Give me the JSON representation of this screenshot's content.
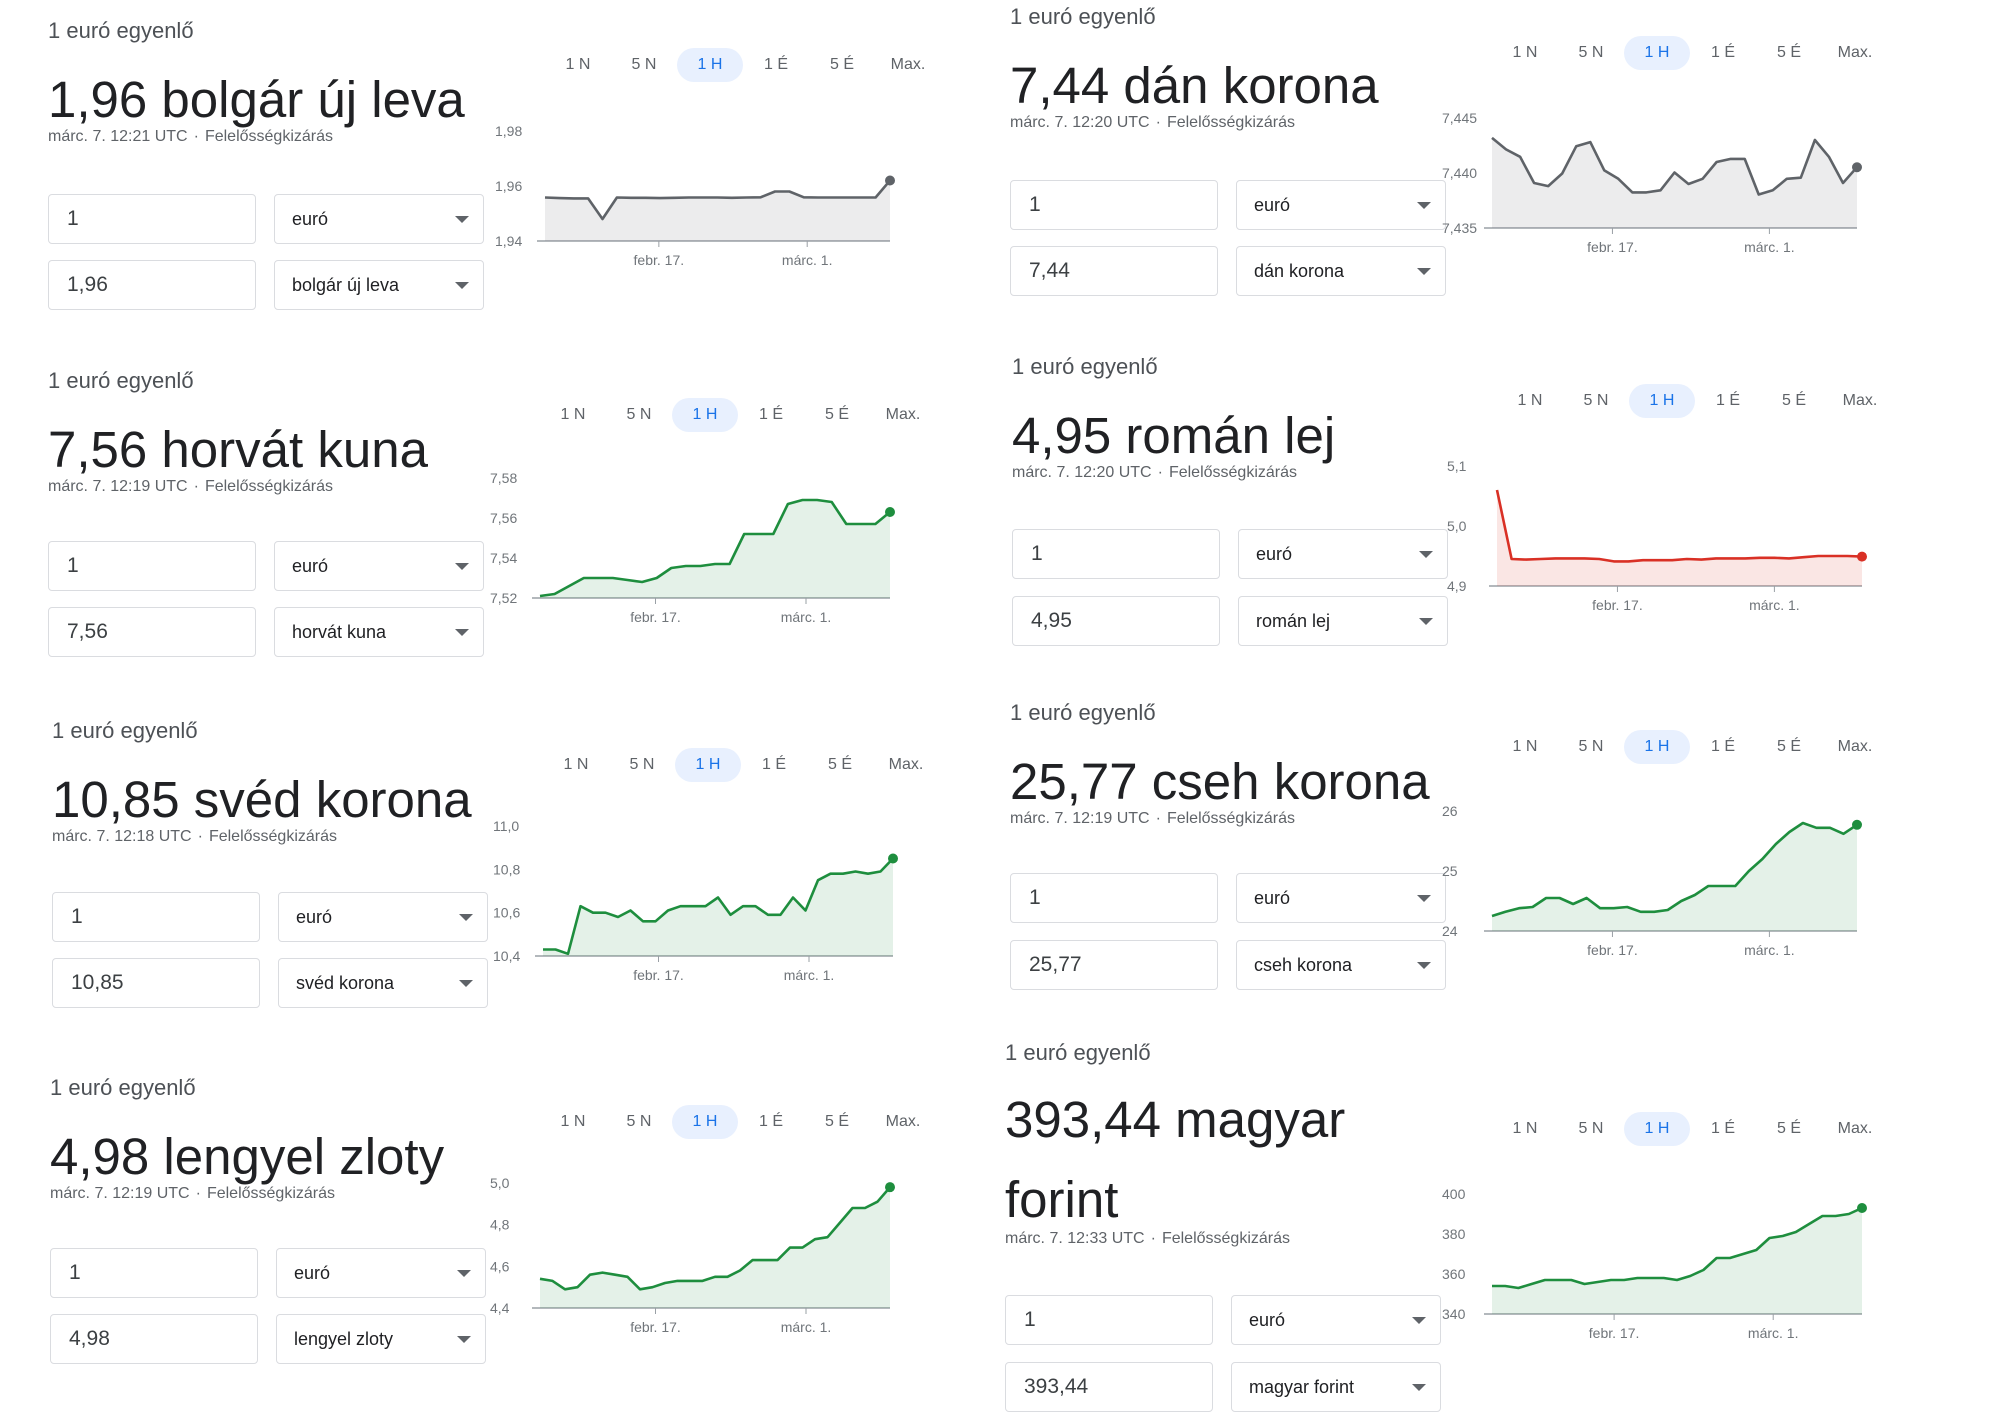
{
  "common": {
    "range_tabs": [
      "1 N",
      "5 N",
      "1 H",
      "1 É",
      "5 É",
      "Max."
    ],
    "active_tab_index": 2,
    "date_labels": [
      "febr. 17.",
      "márc. 1."
    ],
    "disclaimer": "Felelősségkizárás"
  },
  "cards": [
    {
      "id": "bgn",
      "equals_label": "1 euró egyenlő",
      "title": "1,96 bolgár új leva",
      "timestamp": "márc. 7. 12:21 UTC",
      "from_amount": "1",
      "from_currency": "euró",
      "to_amount": "1,96",
      "to_currency": "bolgár új leva",
      "trend_color": "#5f6368",
      "chart_data": {
        "type": "area",
        "y_ticks": [
          "1,98",
          "1,96",
          "1,94"
        ],
        "ylim": [
          1.94,
          1.98
        ],
        "x_labels": [
          "febr. 17.",
          "márc. 1."
        ],
        "values": [
          1.9558,
          1.9556,
          1.9555,
          1.9555,
          1.948,
          1.9558,
          1.9557,
          1.9557,
          1.9556,
          1.9557,
          1.9558,
          1.9558,
          1.9558,
          1.9557,
          1.9558,
          1.9559,
          1.958,
          1.958,
          1.9559,
          1.9558,
          1.9558,
          1.9558,
          1.9558,
          1.9558,
          1.962
        ]
      }
    },
    {
      "id": "dkk",
      "equals_label": "1 euró egyenlő",
      "title": "7,44 dán korona",
      "timestamp": "márc. 7. 12:20 UTC",
      "from_amount": "1",
      "from_currency": "euró",
      "to_amount": "7,44",
      "to_currency": "dán korona",
      "trend_color": "#5f6368",
      "chart_data": {
        "type": "area",
        "y_ticks": [
          "7,445",
          "7,440",
          "7,435"
        ],
        "ylim": [
          7.435,
          7.4455
        ],
        "x_labels": [
          "febr. 17.",
          "márc. 1."
        ],
        "values": [
          7.4436,
          7.4425,
          7.4418,
          7.4393,
          7.439,
          7.4402,
          7.4428,
          7.4432,
          7.4405,
          7.4397,
          7.4384,
          7.4384,
          7.4386,
          7.4403,
          7.4392,
          7.4397,
          7.4413,
          7.4416,
          7.4416,
          7.4382,
          7.4386,
          7.4397,
          7.4398,
          7.4434,
          7.4418,
          7.4393,
          7.4408
        ]
      }
    },
    {
      "id": "hrk",
      "equals_label": "1 euró egyenlő",
      "title": "7,56 horvát kuna",
      "timestamp": "márc. 7. 12:19 UTC",
      "from_amount": "1",
      "from_currency": "euró",
      "to_amount": "7,56",
      "to_currency": "horvát kuna",
      "trend_color": "#1e8e3e",
      "chart_data": {
        "type": "area",
        "y_ticks": [
          "7,58",
          "7,56",
          "7,54",
          "7,52"
        ],
        "ylim": [
          7.52,
          7.58
        ],
        "x_labels": [
          "febr. 17.",
          "márc. 1."
        ],
        "values": [
          7.521,
          7.522,
          7.526,
          7.53,
          7.53,
          7.53,
          7.529,
          7.528,
          7.53,
          7.535,
          7.536,
          7.536,
          7.537,
          7.537,
          7.552,
          7.552,
          7.552,
          7.567,
          7.569,
          7.569,
          7.568,
          7.557,
          7.557,
          7.557,
          7.563
        ]
      }
    },
    {
      "id": "ron",
      "equals_label": "1 euró egyenlő",
      "title": "4,95 román lej",
      "timestamp": "márc. 7. 12:20 UTC",
      "from_amount": "1",
      "from_currency": "euró",
      "to_amount": "4,95",
      "to_currency": "román lej",
      "trend_color": "#d93025",
      "chart_data": {
        "type": "area",
        "y_ticks": [
          "5,1",
          "5,0",
          "4,9"
        ],
        "ylim": [
          4.9,
          5.1
        ],
        "x_labels": [
          "febr. 17.",
          "márc. 1."
        ],
        "values": [
          5.06,
          4.945,
          4.944,
          4.945,
          4.946,
          4.946,
          4.946,
          4.945,
          4.941,
          4.941,
          4.943,
          4.943,
          4.943,
          4.945,
          4.944,
          4.946,
          4.946,
          4.946,
          4.947,
          4.947,
          4.946,
          4.948,
          4.95,
          4.95,
          4.95,
          4.949
        ]
      }
    },
    {
      "id": "sek",
      "equals_label": "1 euró egyenlő",
      "title": "10,85 svéd korona",
      "timestamp": "márc. 7. 12:18 UTC",
      "from_amount": "1",
      "from_currency": "euró",
      "to_amount": "10,85",
      "to_currency": "svéd korona",
      "trend_color": "#1e8e3e",
      "chart_data": {
        "type": "area",
        "y_ticks": [
          "11,0",
          "10,8",
          "10,6",
          "10,4"
        ],
        "ylim": [
          10.4,
          11.0
        ],
        "x_labels": [
          "febr. 17.",
          "márc. 1."
        ],
        "values": [
          10.43,
          10.43,
          10.41,
          10.63,
          10.6,
          10.6,
          10.58,
          10.61,
          10.56,
          10.56,
          10.61,
          10.63,
          10.63,
          10.63,
          10.67,
          10.59,
          10.63,
          10.63,
          10.59,
          10.59,
          10.67,
          10.61,
          10.75,
          10.78,
          10.78,
          10.79,
          10.78,
          10.79,
          10.85
        ]
      }
    },
    {
      "id": "czk",
      "equals_label": "1 euró egyenlő",
      "title": "25,77 cseh korona",
      "timestamp": "márc. 7. 12:19 UTC",
      "from_amount": "1",
      "from_currency": "euró",
      "to_amount": "25,77",
      "to_currency": "cseh korona",
      "trend_color": "#1e8e3e",
      "chart_data": {
        "type": "area",
        "y_ticks": [
          "26",
          "25",
          "24"
        ],
        "ylim": [
          24,
          26
        ],
        "x_labels": [
          "febr. 17.",
          "márc. 1."
        ],
        "values": [
          24.25,
          24.32,
          24.38,
          24.4,
          24.55,
          24.55,
          24.45,
          24.55,
          24.38,
          24.38,
          24.4,
          24.32,
          24.32,
          24.35,
          24.5,
          24.6,
          24.75,
          24.75,
          24.75,
          25.0,
          25.2,
          25.45,
          25.65,
          25.8,
          25.72,
          25.72,
          25.62,
          25.77
        ]
      }
    },
    {
      "id": "pln",
      "equals_label": "1 euró egyenlő",
      "title": "4,98 lengyel zloty",
      "timestamp": "márc. 7. 12:19 UTC",
      "from_amount": "1",
      "from_currency": "euró",
      "to_amount": "4,98",
      "to_currency": "lengyel zloty",
      "trend_color": "#1e8e3e",
      "chart_data": {
        "type": "area",
        "y_ticks": [
          "5,0",
          "4,8",
          "4,6",
          "4,4"
        ],
        "ylim": [
          4.4,
          5.0
        ],
        "x_labels": [
          "febr. 17.",
          "márc. 1."
        ],
        "values": [
          4.54,
          4.53,
          4.49,
          4.5,
          4.56,
          4.57,
          4.56,
          4.55,
          4.49,
          4.5,
          4.52,
          4.53,
          4.53,
          4.53,
          4.55,
          4.55,
          4.58,
          4.63,
          4.63,
          4.63,
          4.69,
          4.69,
          4.73,
          4.74,
          4.81,
          4.88,
          4.88,
          4.91,
          4.98
        ]
      }
    },
    {
      "id": "huf",
      "equals_label": "1 euró egyenlő",
      "title": "393,44 magyar forint",
      "timestamp": "márc. 7. 12:33 UTC",
      "from_amount": "1",
      "from_currency": "euró",
      "to_amount": "393,44",
      "to_currency": "magyar forint",
      "trend_color": "#1e8e3e",
      "chart_data": {
        "type": "area",
        "y_ticks": [
          "400",
          "380",
          "360",
          "340"
        ],
        "ylim": [
          340,
          400
        ],
        "x_labels": [
          "febr. 17.",
          "márc. 1."
        ],
        "values": [
          354,
          354,
          353,
          355,
          357,
          357,
          357,
          355,
          356,
          357,
          357,
          358,
          358,
          358,
          357,
          359,
          362,
          368,
          368,
          370,
          372,
          378,
          379,
          381,
          385,
          389,
          389,
          390,
          393
        ]
      }
    }
  ]
}
